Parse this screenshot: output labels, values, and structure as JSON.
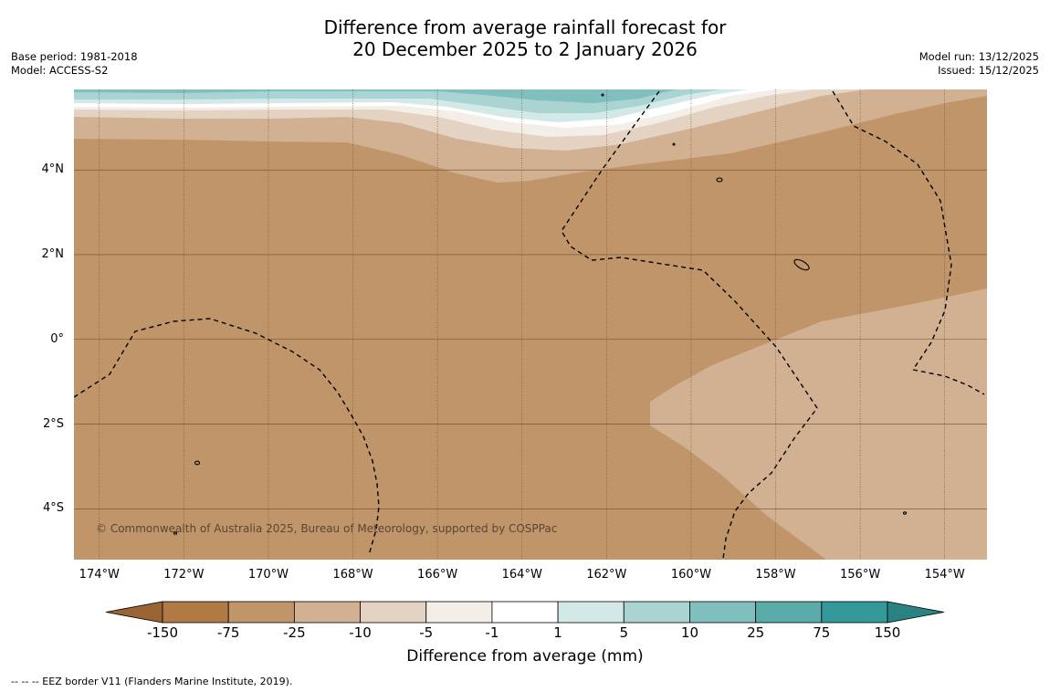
{
  "title": {
    "line1": "Difference from average rainfall forecast for",
    "line2": "20 December 2025 to 2 January 2026"
  },
  "meta_left": {
    "base_period": "Base period: 1981-2018",
    "model": "Model: ACCESS-S2"
  },
  "meta_right": {
    "model_run": "Model run: 13/12/2025",
    "issued": "Issued: 15/12/2025"
  },
  "map": {
    "lon_range": [
      -174.6,
      -153.0
    ],
    "lat_range": [
      -5.2,
      5.9
    ],
    "lat_ticks": [
      {
        "value": 4,
        "label": "4°N"
      },
      {
        "value": 2,
        "label": "2°N"
      },
      {
        "value": 0,
        "label": "0°"
      },
      {
        "value": -2,
        "label": "2°S"
      },
      {
        "value": -4,
        "label": "4°S"
      }
    ],
    "lon_ticks": [
      {
        "value": -174,
        "label": "174°W"
      },
      {
        "value": -172,
        "label": "172°W"
      },
      {
        "value": -170,
        "label": "170°W"
      },
      {
        "value": -168,
        "label": "168°W"
      },
      {
        "value": -166,
        "label": "166°W"
      },
      {
        "value": -164,
        "label": "164°W"
      },
      {
        "value": -162,
        "label": "162°W"
      },
      {
        "value": -160,
        "label": "160°W"
      },
      {
        "value": -158,
        "label": "158°W"
      },
      {
        "value": -156,
        "label": "156°W"
      },
      {
        "value": -154,
        "label": "154°W"
      }
    ],
    "copyright": "© Commonwealth of Australia 2025, Bureau of Meteorology, supported by COSPPac"
  },
  "colors": {
    "bg_anomaly": "#c0956a",
    "light_dry": "#d2b193",
    "very_light_dry": "#e4d2c3",
    "near_zero": "#f3eee8",
    "wet_light": "#d3e9e7",
    "wet_mid": "#a9d4d2",
    "wet_strong": "#80bfbd",
    "gridline": "#6b4c2e"
  },
  "colorbar": {
    "ticks": [
      "-150",
      "-75",
      "-25",
      "-10",
      "-5",
      "-1",
      "1",
      "5",
      "10",
      "25",
      "75",
      "150"
    ],
    "bins": [
      "#b07a45",
      "#c0956a",
      "#d2b193",
      "#e4d2c3",
      "#f3eee8",
      "#ffffff",
      "#d3e9e7",
      "#a9d4d2",
      "#80bfbd",
      "#5aacaa",
      "#349999"
    ],
    "low_extend": "#9a6535",
    "high_extend": "#2a8282",
    "title": "Difference from average (mm)"
  },
  "footer": "--  --  -- EEZ border V11 (Flanders Marine Institute, 2019)."
}
